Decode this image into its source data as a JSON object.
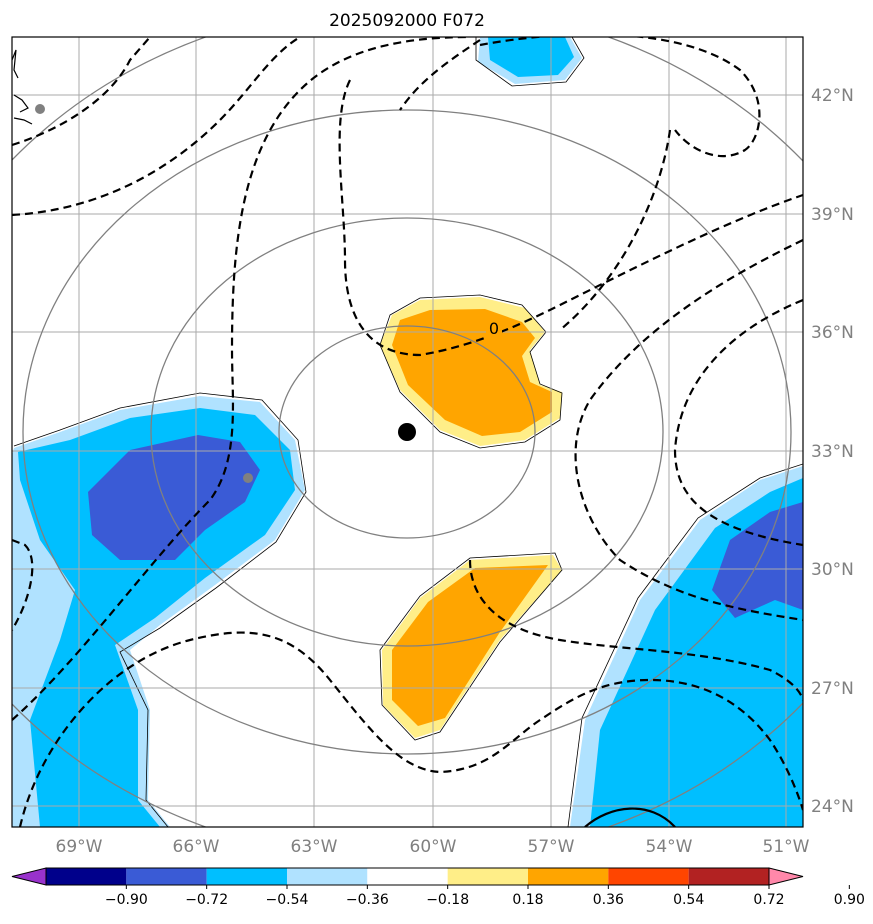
{
  "title": "2025092000 F072",
  "x_tick_labels": [
    "69°W",
    "66°W",
    "63°W",
    "60°W",
    "57°W",
    "54°W",
    "51°W"
  ],
  "y_tick_labels": [
    "42°N",
    "39°N",
    "36°N",
    "33°N",
    "30°N",
    "27°N",
    "24°N"
  ],
  "contour_label": "0",
  "colorbar": {
    "tick_labels": [
      "−0.90",
      "−0.72",
      "−0.54",
      "−0.36",
      "−0.18",
      "0.18",
      "0.36",
      "0.54",
      "0.72",
      "0.90"
    ],
    "colors": [
      "#9932cc",
      "#00008b",
      "#3a5bd6",
      "#00bfff",
      "#b0e2ff",
      "#ffffff",
      "#ffee88",
      "#ffa500",
      "#ff4500",
      "#b22222",
      "#ff88aa"
    ]
  },
  "colors": {
    "dark_blue": "#3a5bd6",
    "blue": "#00bfff",
    "light_blue": "#b0e2ff",
    "light_yellow": "#ffee88",
    "orange": "#ffa500",
    "grid": "#aaaaaa",
    "range_rings": "#808080",
    "contour": "#000000"
  }
}
